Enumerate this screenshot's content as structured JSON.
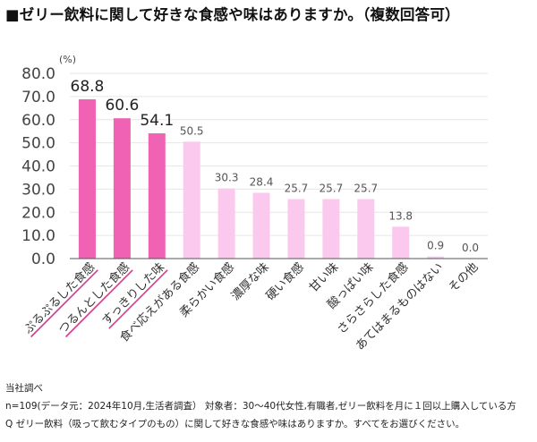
{
  "title": "■ゼリー飲料に関して好きな食感や味はありますか。（複数回答可）",
  "chart_data": {
    "type": "bar",
    "unit": "(%)",
    "ylim": [
      0,
      80
    ],
    "yticks": [
      "0.0",
      "10.0",
      "20.0",
      "30.0",
      "40.0",
      "50.0",
      "60.0",
      "70.0",
      "80.0"
    ],
    "categories": [
      "ぷるぷるした食感",
      "つるんとした食感",
      "すっきりした味",
      "食べ応えがある食感",
      "柔らかい食感",
      "濃厚な味",
      "硬い食感",
      "甘い味",
      "酸っぱい味",
      "さらさらした食感",
      "あてはまるものはない",
      "その他"
    ],
    "values": [
      68.8,
      60.6,
      54.1,
      50.5,
      30.3,
      28.4,
      25.7,
      25.7,
      25.7,
      13.8,
      0.9,
      0.0
    ],
    "labels": [
      "68.8",
      "60.6",
      "54.1",
      "50.5",
      "30.3",
      "28.4",
      "25.7",
      "25.7",
      "25.7",
      "13.8",
      "0.9",
      "0.0"
    ],
    "highlight_count": 3,
    "colors": {
      "highlight": "#ef62b4",
      "normal": "#fcc9ee",
      "axis": "#555555",
      "grid": "#e6e6e6",
      "underline": "#d63a8e"
    },
    "grid": true
  },
  "footer": {
    "source": "当社調べ",
    "note": "n=109(データ元：2024年10月,生活者調査）  対象者：30〜40代女性,有職者,ゼリー飲料を月に１回以上購入している方",
    "question": "Q ゼリー飲料（吸って飲むタイプのもの）に関して好きな食感や味はありますか。すべてをお選びください。"
  }
}
